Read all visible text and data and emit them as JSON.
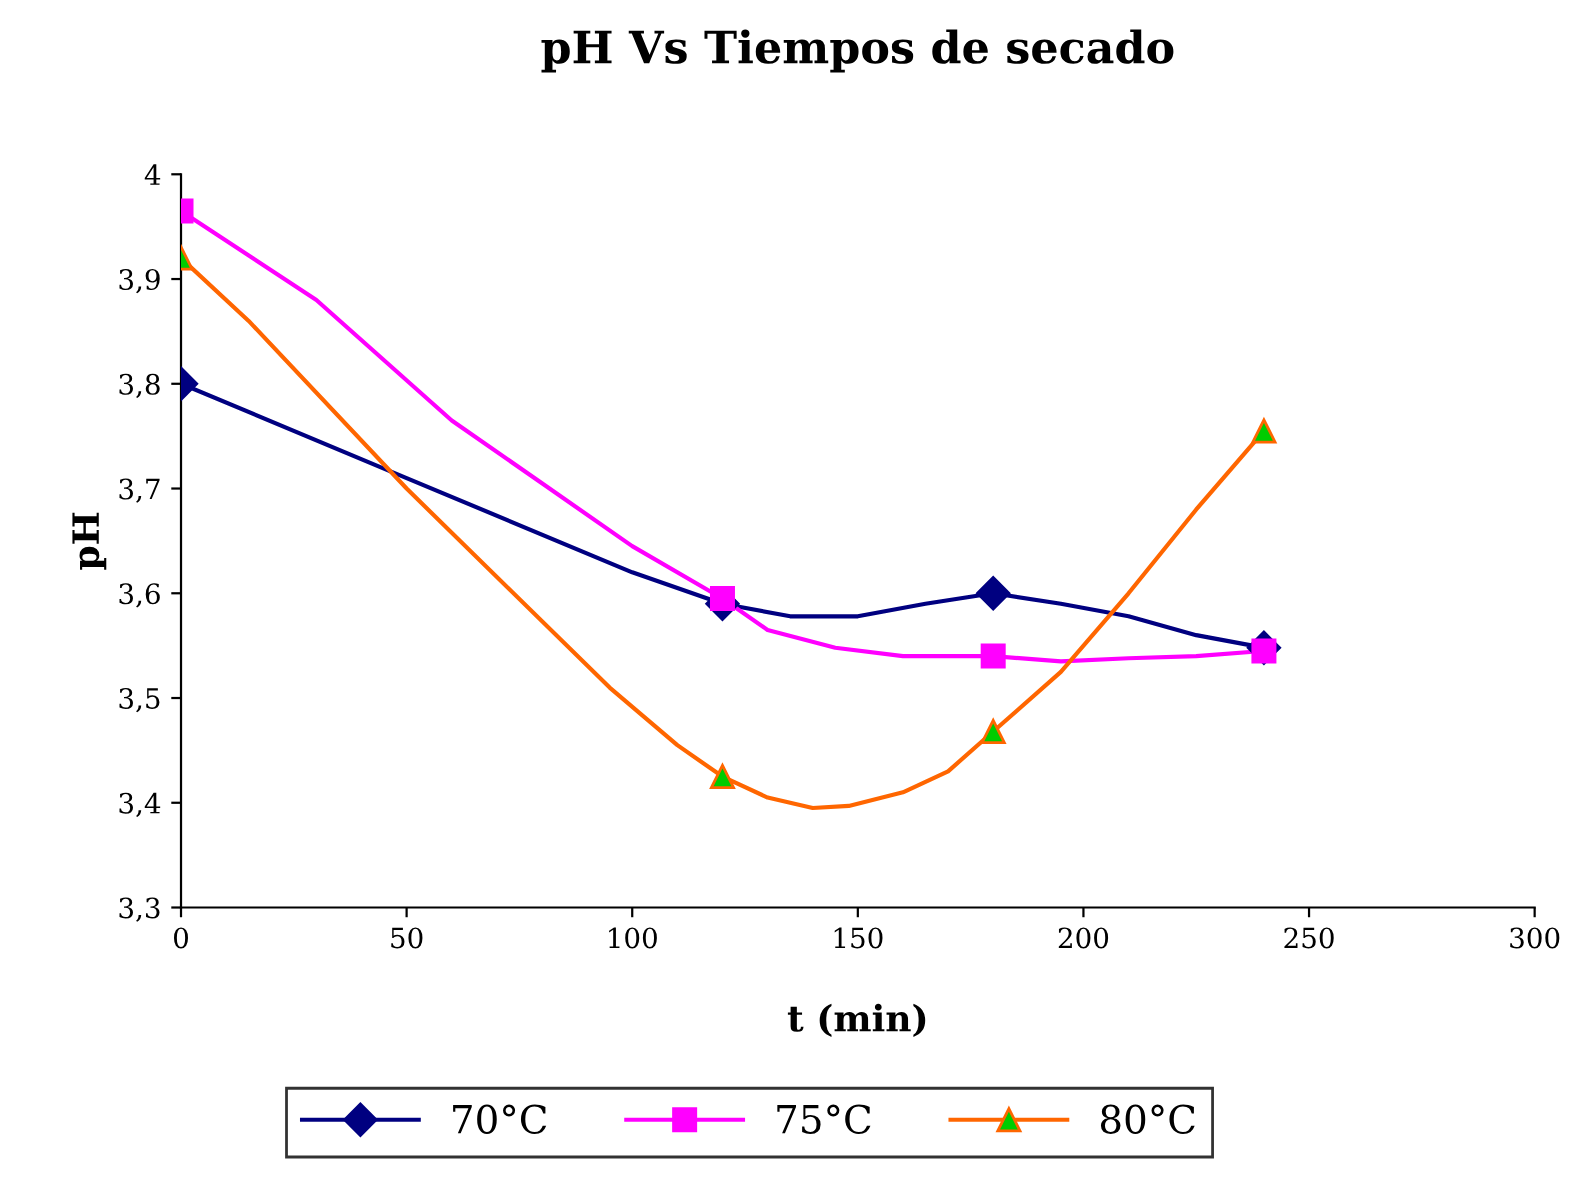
{
  "chart_data": {
    "type": "line",
    "title": "pH Vs Tiempos de secado",
    "xlabel": "t (min)",
    "ylabel": "pH",
    "x": [
      0,
      120,
      180,
      240
    ],
    "series": [
      {
        "name": "70°C",
        "color": "#000080",
        "marker": "none",
        "x": [
          0,
          50,
          100,
          120,
          135,
          150,
          165,
          180,
          195,
          210,
          225,
          240
        ],
        "values": [
          3.8,
          3.71,
          3.62,
          3.59,
          3.578,
          3.578,
          3.59,
          3.6,
          3.59,
          3.578,
          3.56,
          3.548
        ]
      },
      {
        "type": "scatter",
        "color": "#000080",
        "marker": "diamond",
        "values": [
          3.8,
          3.59,
          3.6,
          3.548
        ]
      },
      {
        "name": "75°C",
        "color": "#ff00ff",
        "marker": "none",
        "x": [
          0,
          30,
          60,
          80,
          100,
          120,
          130,
          145,
          160,
          180,
          195,
          210,
          225,
          240
        ],
        "values": [
          3.965,
          3.88,
          3.765,
          3.705,
          3.645,
          3.595,
          3.565,
          3.548,
          3.54,
          3.54,
          3.535,
          3.538,
          3.54,
          3.545
        ]
      },
      {
        "type": "scatter",
        "color": "#ff00ff",
        "marker": "square",
        "values": [
          3.965,
          3.595,
          3.54,
          3.545
        ]
      },
      {
        "name": "80°C",
        "color": "#ff6600",
        "marker": "none",
        "x": [
          0,
          15,
          50,
          95,
          110,
          120,
          130,
          140,
          148,
          160,
          170,
          180,
          195,
          210,
          225,
          240
        ],
        "values": [
          3.92,
          3.86,
          3.7,
          3.51,
          3.455,
          3.425,
          3.405,
          3.395,
          3.397,
          3.41,
          3.43,
          3.468,
          3.525,
          3.6,
          3.68,
          3.755
        ]
      },
      {
        "type": "scatter",
        "color": "#00cc00",
        "marker": "triangle",
        "values": [
          3.92,
          3.425,
          3.468,
          3.755
        ]
      }
    ],
    "xlim": [
      0,
      300
    ],
    "xticks": [
      0,
      50,
      100,
      150,
      200,
      250,
      300
    ],
    "ylim": [
      3.3,
      4
    ],
    "yticks": [
      {
        "value": 3.3,
        "label": "3,3"
      },
      {
        "value": 3.4,
        "label": "3,4"
      },
      {
        "value": 3.5,
        "label": "3,5"
      },
      {
        "value": 3.6,
        "label": "3,6"
      },
      {
        "value": 3.7,
        "label": "3,7"
      },
      {
        "value": 3.8,
        "label": "3,8"
      },
      {
        "value": 3.9,
        "label": "3,9"
      },
      {
        "value": 4,
        "label": "4"
      }
    ],
    "grid": false,
    "legend": "bottom",
    "line_style": "solid"
  }
}
